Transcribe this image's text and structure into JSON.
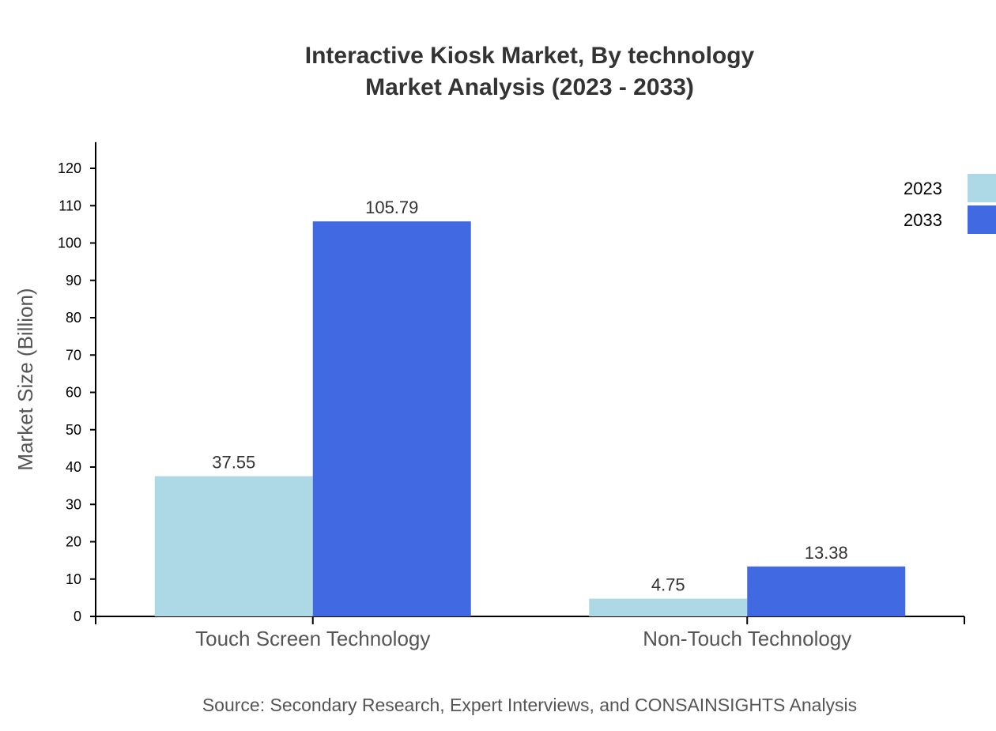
{
  "chart_data": {
    "type": "bar",
    "title": "Interactive Kiosk Market, By technology",
    "subtitle": "Market Analysis (2023 - 2033)",
    "ylabel": "Market Size (Billion)",
    "xlabel": "",
    "categories": [
      "Touch Screen Technology",
      "Non-Touch Technology"
    ],
    "series": [
      {
        "name": "2023",
        "color": "#ADD8E6",
        "values": [
          37.55,
          4.75
        ]
      },
      {
        "name": "2033",
        "color": "#4169E1",
        "values": [
          105.79,
          13.38
        ]
      }
    ],
    "yticks": [
      0,
      10,
      20,
      30,
      40,
      50,
      60,
      70,
      80,
      90,
      100,
      110,
      120
    ],
    "ylim": [
      0,
      127
    ],
    "grid": false,
    "legend": "top-right",
    "source": "Source: Secondary Research, Expert Interviews, and CONSAINSIGHTS Analysis"
  }
}
